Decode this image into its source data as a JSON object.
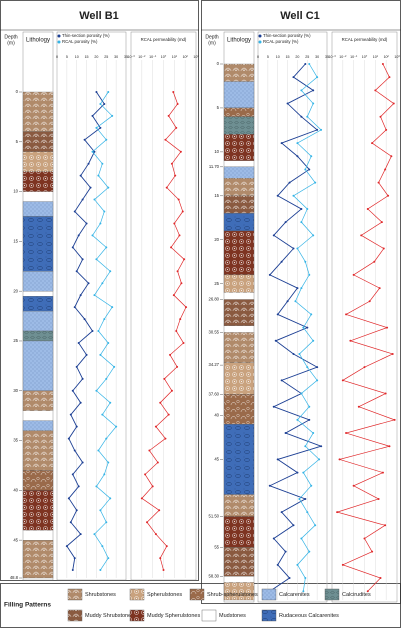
{
  "chart_data": [
    {
      "type": "log",
      "title": "Well B1",
      "depth_label": [
        "Depth",
        "(m)"
      ],
      "lithology_label": "Lithology",
      "ylim": [
        0,
        48.8
      ],
      "yticks": [
        0,
        5,
        10,
        15,
        20,
        25,
        30,
        35,
        40,
        45,
        48.8
      ],
      "xlim": [
        0,
        35
      ],
      "xticks": [
        0,
        5,
        10,
        15,
        20,
        25,
        30,
        35
      ],
      "x2lim": [
        0.001,
        1000
      ],
      "x2log": true,
      "x2ticks": [
        {
          "value": 0.001,
          "label": "10⁻³"
        },
        {
          "value": 0.01,
          "label": "10⁻²"
        },
        {
          "value": 0.1,
          "label": "10⁻¹"
        },
        {
          "value": 1,
          "label": "10⁰"
        },
        {
          "value": 10,
          "label": "10¹"
        },
        {
          "value": 100,
          "label": "10²"
        },
        {
          "value": 1000,
          "label": "10³"
        }
      ],
      "grid": true,
      "depth": [
        0,
        1.2,
        2.4,
        3.6,
        4.8,
        6,
        7.2,
        8.4,
        9.6,
        10.8,
        12,
        13.2,
        14.4,
        15.6,
        16.8,
        18,
        19.2,
        20.4,
        21.6,
        22.8,
        24,
        25.2,
        26.4,
        27.6,
        28.8,
        30,
        31.2,
        32.4,
        33.6,
        34.8,
        36,
        37.2,
        38.4,
        39.6,
        40.8,
        42,
        43.2,
        44.4,
        45.6,
        46.8,
        48
      ],
      "series": [
        {
          "name": "Thin-section porosity (%)",
          "color": "#1c3f94",
          "values": [
            20,
            24,
            18,
            22,
            14,
            19,
            16,
            12,
            17,
            13,
            9,
            15,
            11,
            8,
            13,
            10,
            16,
            12,
            9,
            14,
            18,
            11,
            15,
            10,
            13,
            8,
            12,
            7,
            10,
            6,
            9,
            13,
            8,
            11,
            6,
            10,
            7,
            12,
            5,
            9,
            8
          ]
        },
        {
          "name": "RCAL porosity (%)",
          "color": "#35b4e6",
          "values": [
            26,
            22,
            28,
            20,
            25,
            18,
            23,
            21,
            26,
            19,
            24,
            22,
            18,
            25,
            20,
            27,
            23,
            19,
            28,
            24,
            21,
            26,
            22,
            29,
            25,
            20,
            27,
            23,
            30,
            25,
            21,
            26,
            24,
            20,
            27,
            22,
            25,
            19,
            23,
            26,
            22
          ]
        },
        {
          "name": "RCAL permeability (md)",
          "color": "#e0282a",
          "axis": "x2",
          "values": [
            8,
            20,
            3,
            15,
            1.5,
            40,
            6,
            12,
            2,
            25,
            60,
            10,
            30,
            5,
            80,
            20,
            45,
            9,
            120,
            35,
            15,
            70,
            4,
            18,
            1.2,
            6,
            0.5,
            3,
            0.2,
            1.5,
            0.05,
            0.3,
            0.02,
            0.1,
            0.01,
            0.4,
            0.03,
            0.2,
            2,
            0.5,
            1
          ]
        }
      ],
      "lithology": {
        "tops": [
          0,
          4,
          6,
          8,
          11,
          12.5,
          18,
          20.5,
          22,
          24,
          25,
          30,
          33,
          34,
          38,
          40,
          45
        ],
        "bases": [
          4,
          6,
          8,
          10,
          12.5,
          18,
          20,
          22,
          24,
          25,
          30,
          32,
          34,
          38,
          40,
          44,
          48.8
        ],
        "facies": [
          "Shrubstones",
          "Muddy Shrubstones",
          "Spherulstones",
          "Muddy Spherulstones",
          "Calcarenites",
          "Rudaceous Calcarenites",
          "Calcarenites",
          "Rudaceous Calcarenites",
          "Calcarenites",
          "Calcirudites",
          "Calcarenites",
          "Shrubstones",
          "Calcarenites",
          "Shrubstones",
          "Shrub-spherulstones",
          "Muddy Spherulstones",
          "Shrubstones"
        ]
      }
    },
    {
      "type": "log",
      "title": "Well C1",
      "depth_label": [
        "Depth",
        "(m)"
      ],
      "lithology_label": "Lithology",
      "ylim": [
        0,
        61
      ],
      "yticks": [
        0,
        5,
        10,
        {
          "value": 11.7,
          "label": "11.70"
        },
        15,
        20,
        25,
        {
          "value": 26.8,
          "label": "26.80"
        },
        {
          "value": 30.55,
          "label": "30.55"
        },
        {
          "value": 34.27,
          "label": "34.27"
        },
        {
          "value": 37.6,
          "label": "37.60"
        },
        40,
        45,
        {
          "value": 51.5,
          "label": "51.50"
        },
        55,
        {
          "value": 58.3,
          "label": "58.30"
        }
      ],
      "xlim": [
        0,
        35
      ],
      "xticks": [
        0,
        5,
        10,
        15,
        20,
        25,
        30,
        35
      ],
      "x2lim": [
        0.001,
        1000
      ],
      "x2log": true,
      "x2ticks": [
        {
          "value": 0.001,
          "label": "10⁻³"
        },
        {
          "value": 0.01,
          "label": "10⁻²"
        },
        {
          "value": 0.1,
          "label": "10⁻¹"
        },
        {
          "value": 1,
          "label": "10⁰"
        },
        {
          "value": 10,
          "label": "10¹"
        },
        {
          "value": 100,
          "label": "10²"
        },
        {
          "value": 1000,
          "label": "10³"
        }
      ],
      "grid": true,
      "depth": [
        0,
        1.5,
        3,
        4.5,
        6,
        7.5,
        9,
        10.5,
        12,
        13.5,
        15,
        16.5,
        18,
        19.5,
        21,
        22.5,
        24,
        25.5,
        27,
        28.5,
        30,
        31.5,
        33,
        34.5,
        36,
        37.5,
        39,
        40.5,
        42,
        43.5,
        45,
        46.5,
        48,
        49.5,
        51,
        52.5,
        54,
        55.5,
        57,
        58.5,
        60
      ],
      "series": [
        {
          "name": "Thin-section porosity (%)",
          "color": "#1c3f94",
          "values": [
            24,
            18,
            28,
            15,
            22,
            30,
            12,
            20,
            26,
            16,
            10,
            22,
            14,
            8,
            18,
            12,
            6,
            20,
            15,
            10,
            25,
            9,
            18,
            30,
            12,
            22,
            8,
            26,
            14,
            32,
            10,
            20,
            6,
            24,
            12,
            18,
            8,
            14,
            10,
            16,
            6
          ]
        },
        {
          "name": "RCAL porosity (%)",
          "color": "#35b4e6",
          "values": [
            26,
            30,
            22,
            28,
            25,
            32,
            20,
            27,
            24,
            29,
            18,
            25,
            22,
            28,
            20,
            24,
            26,
            22,
            19,
            27,
            23,
            28,
            21,
            25,
            30,
            22,
            26,
            20,
            28,
            24,
            31,
            23,
            27,
            21,
            25,
            29,
            22,
            26,
            20,
            24,
            23
          ]
        },
        {
          "name": "RCAL permeability (md)",
          "color": "#e0282a",
          "axis": "x2",
          "values": [
            50,
            200,
            10,
            500,
            30,
            100,
            5,
            300,
            80,
            20,
            150,
            2,
            40,
            0.5,
            60,
            8,
            0.1,
            25,
            3,
            0.02,
            120,
            0.05,
            400,
            1,
            0.01,
            90,
            0.3,
            600,
            0.02,
            200,
            0.005,
            50,
            0.1,
            20,
            0.003,
            80,
            1,
            5,
            0.01,
            30,
            2
          ]
        }
      ],
      "lithology": {
        "tops": [
          0,
          2,
          5,
          6,
          8,
          11.7,
          13,
          15,
          17,
          19,
          24,
          26.8,
          30.55,
          34,
          37.6,
          41,
          49,
          51.5,
          55,
          59
        ],
        "bases": [
          2,
          5,
          6,
          8,
          11,
          13,
          15,
          17,
          19,
          24,
          26,
          29.8,
          34,
          37.6,
          41,
          49,
          51.5,
          55,
          58.3,
          61
        ],
        "facies": [
          "Shrubstones",
          "Calcarenites",
          "Shrub-spherulstones",
          "Calcirudites",
          "Muddy Spherulstones",
          "Calcarenites",
          "Shrubstones",
          "Muddy Shrubstones",
          "Rudaceous Calcarenites",
          "Muddy Spherulstones",
          "Spherulstones",
          "Muddy Shrubstones",
          "Shrubstones",
          "Spherulstones",
          "Shrub-spherulstones",
          "Rudaceous Calcarenites",
          "Shrubstones",
          "Muddy Spherulstones",
          "Muddy Shrubstones",
          "Spherulstones"
        ]
      }
    }
  ],
  "legend": {
    "title": "Filling Patterns",
    "items": [
      {
        "name": "Shrubstones",
        "color": "#b08a6a"
      },
      {
        "name": "Spherulstones",
        "color": "#c9a27e"
      },
      {
        "name": "Shrub-spherulstones",
        "color": "#9a6a4a"
      },
      {
        "name": "Calcarenites",
        "color": "#9dbbe6"
      },
      {
        "name": "Calcirudites",
        "color": "#6e8f92"
      },
      {
        "name": "Muddy Shrubstones",
        "color": "#8a5a40"
      },
      {
        "name": "Muddy Spherulstones",
        "color": "#7e3422"
      },
      {
        "name": "Mudstones",
        "color": "#ffffff"
      },
      {
        "name": "Rudaceous Calcarenites",
        "color": "#3f6db8"
      }
    ]
  }
}
